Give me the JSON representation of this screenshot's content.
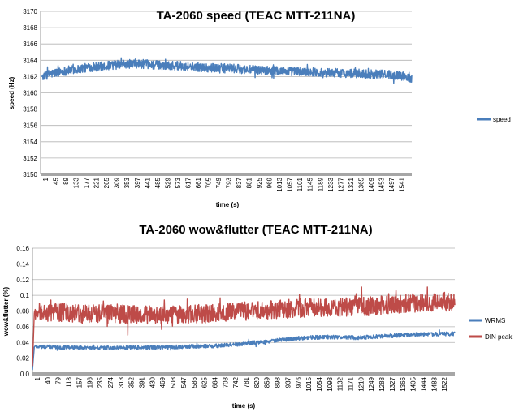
{
  "chart_data": [
    {
      "type": "line",
      "title": "TA-2060 speed (TEAC MTT-211NA)",
      "xlabel": "time (s)",
      "ylabel": "speed (Hz)",
      "ylim": [
        3150,
        3170
      ],
      "y_ticks": [
        3150,
        3152,
        3154,
        3156,
        3158,
        3160,
        3162,
        3164,
        3166,
        3168,
        3170
      ],
      "x_tick_labels": [
        "1",
        "45",
        "89",
        "133",
        "177",
        "221",
        "265",
        "309",
        "353",
        "397",
        "441",
        "485",
        "529",
        "573",
        "617",
        "661",
        "705",
        "749",
        "793",
        "837",
        "881",
        "925",
        "969",
        "1013",
        "1057",
        "1101",
        "1145",
        "1189",
        "1233",
        "1277",
        "1321",
        "1365",
        "1409",
        "1453",
        "1497",
        "1541"
      ],
      "x_range": [
        1,
        1560
      ],
      "grid": "horizontal",
      "legend_position": "right",
      "series": [
        {
          "name": "speed",
          "color": "#4a7ebb",
          "noise": 0.55,
          "points": [
            [
              1,
              3162.0
            ],
            [
              40,
              3162.3
            ],
            [
              100,
              3162.7
            ],
            [
              200,
              3163.1
            ],
            [
              300,
              3163.4
            ],
            [
              400,
              3163.6
            ],
            [
              500,
              3163.4
            ],
            [
              600,
              3163.3
            ],
            [
              700,
              3163.1
            ],
            [
              800,
              3163.0
            ],
            [
              900,
              3162.8
            ],
            [
              1000,
              3162.7
            ],
            [
              1100,
              3162.6
            ],
            [
              1200,
              3162.5
            ],
            [
              1300,
              3162.4
            ],
            [
              1400,
              3162.3
            ],
            [
              1500,
              3162.2
            ],
            [
              1560,
              3161.8
            ]
          ]
        }
      ]
    },
    {
      "type": "line",
      "title": "TA-2060 wow&flutter (TEAC MTT-211NA)",
      "xlabel": "time (s)",
      "ylabel": "wow&flutter (%)",
      "ylim": [
        0,
        0.16
      ],
      "y_ticks": [
        0,
        0.02,
        0.04,
        0.06,
        0.08,
        0.1,
        0.12,
        0.14,
        0.16
      ],
      "x_tick_labels": [
        "1",
        "40",
        "79",
        "118",
        "157",
        "196",
        "235",
        "274",
        "313",
        "352",
        "391",
        "430",
        "469",
        "508",
        "547",
        "586",
        "625",
        "664",
        "703",
        "742",
        "781",
        "820",
        "859",
        "898",
        "937",
        "976",
        "1015",
        "1054",
        "1093",
        "1132",
        "1171",
        "1210",
        "1249",
        "1288",
        "1327",
        "1366",
        "1405",
        "1444",
        "1483",
        "1522"
      ],
      "x_range": [
        1,
        1560
      ],
      "grid": "horizontal",
      "legend_position": "right",
      "series": [
        {
          "name": "WRMS",
          "color": "#4a7ebb",
          "noise": 0.0025,
          "points": [
            [
              1,
              0.005
            ],
            [
              8,
              0.035
            ],
            [
              100,
              0.034
            ],
            [
              300,
              0.033
            ],
            [
              500,
              0.034
            ],
            [
              700,
              0.036
            ],
            [
              800,
              0.039
            ],
            [
              1000,
              0.046
            ],
            [
              1100,
              0.047
            ],
            [
              1200,
              0.046
            ],
            [
              1300,
              0.048
            ],
            [
              1400,
              0.05
            ],
            [
              1560,
              0.051
            ]
          ]
        },
        {
          "name": "DIN peak",
          "color": "#be4b48",
          "noise": 0.012,
          "points": [
            [
              1,
              0.01
            ],
            [
              8,
              0.08
            ],
            [
              100,
              0.078
            ],
            [
              300,
              0.076
            ],
            [
              500,
              0.074
            ],
            [
              700,
              0.078
            ],
            [
              900,
              0.082
            ],
            [
              1000,
              0.084
            ],
            [
              1200,
              0.085
            ],
            [
              1400,
              0.09
            ],
            [
              1560,
              0.092
            ]
          ]
        }
      ]
    }
  ]
}
